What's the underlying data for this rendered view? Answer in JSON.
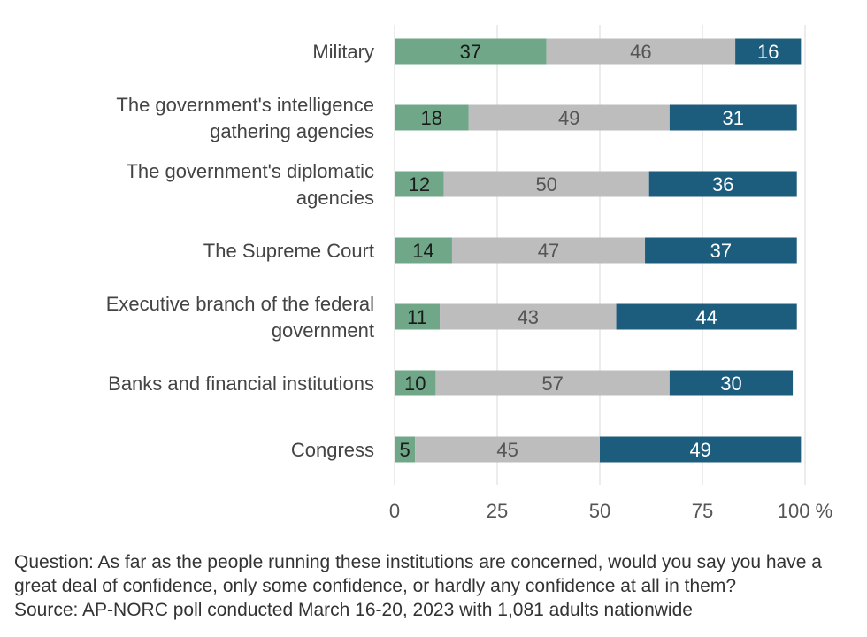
{
  "chart_data": {
    "type": "bar",
    "orientation": "horizontal",
    "stacked": true,
    "categories": [
      "Military",
      "The government's intelligence gathering agencies",
      "The government's diplomatic agencies",
      "The Supreme Court",
      "Executive branch of the federal government",
      "Banks and financial institutions",
      "Congress"
    ],
    "category_lines": [
      [
        "Military"
      ],
      [
        "The government's intelligence",
        "gathering agencies"
      ],
      [
        "The government's diplomatic",
        "agencies"
      ],
      [
        "The Supreme Court"
      ],
      [
        "Executive branch of the federal",
        "government"
      ],
      [
        "Banks and financial institutions"
      ],
      [
        "Congress"
      ]
    ],
    "series": [
      {
        "values": [
          37,
          18,
          12,
          14,
          11,
          10,
          5
        ],
        "color": "#6fa788",
        "label_color": "#1a1a1a"
      },
      {
        "values": [
          46,
          49,
          50,
          47,
          43,
          57,
          45
        ],
        "color": "#bdbdbd",
        "label_color": "#555555"
      },
      {
        "values": [
          16,
          31,
          36,
          37,
          44,
          30,
          49
        ],
        "color": "#1c5d7e",
        "label_color": "#ffffff"
      }
    ],
    "x_ticks": [
      "0",
      "25",
      "50",
      "75",
      "100 %"
    ],
    "xlim": [
      0,
      100
    ],
    "grid": true
  },
  "footnote": {
    "question": "Question: As far as the people running these institutions are concerned, would you say you have a great deal of confidence, only some confidence, or hardly any confidence at all in them?",
    "source": "Source: AP-NORC poll conducted March 16-20, 2023 with 1,081 adults nationwide"
  }
}
